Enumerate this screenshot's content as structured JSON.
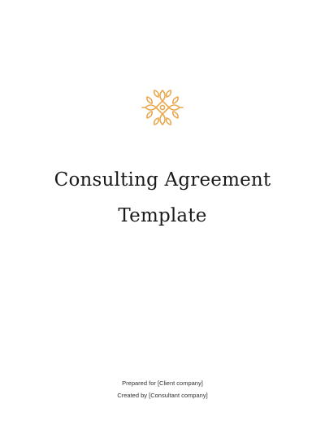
{
  "document": {
    "title_line1": "Consulting Agreement",
    "title_line2": "Template",
    "prepared_for": "Prepared for [Client company]",
    "created_by": "Created by [Consultant company]"
  },
  "logo": {
    "icon": "ornament-icon",
    "color": "#E8A94F"
  }
}
